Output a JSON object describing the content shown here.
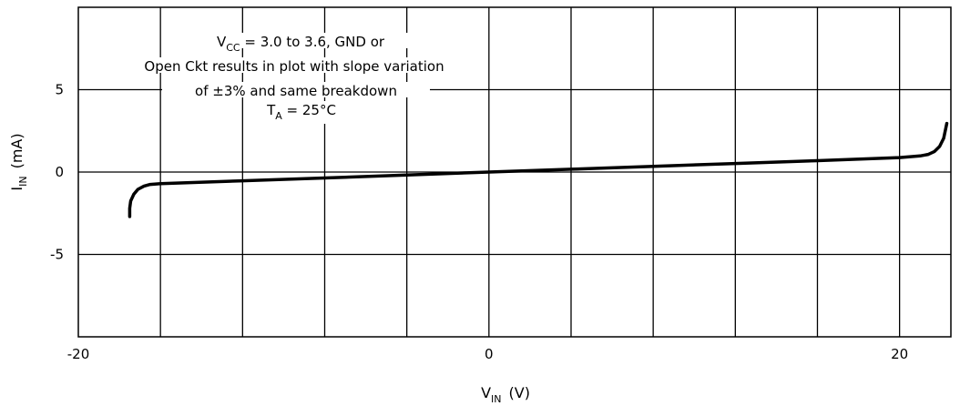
{
  "chart_data": {
    "type": "line",
    "title": "",
    "xlabel": {
      "main": "V",
      "sub": "IN",
      "unit": "(V)"
    },
    "ylabel": {
      "main": "I",
      "sub": "IN",
      "unit": "(mA)"
    },
    "xlim": [
      -20,
      22.5
    ],
    "ylim": [
      -10,
      10
    ],
    "x_grid": [
      -16,
      -12,
      -8,
      -4,
      0,
      4,
      8,
      12,
      16,
      20
    ],
    "y_grid": [
      -5,
      0,
      5
    ],
    "x_ticks": [
      {
        "value": -20,
        "label": "-20"
      },
      {
        "value": 0,
        "label": "0"
      },
      {
        "value": 20,
        "label": "20"
      }
    ],
    "y_ticks": [
      {
        "value": 5,
        "label": "5"
      },
      {
        "value": 0,
        "label": "0"
      },
      {
        "value": -5,
        "label": "-5"
      }
    ],
    "grid": true,
    "annotation": {
      "line1_main": "V",
      "line1_sub": "CC",
      "line1_rest": " = 3.0 to 3.6, GND or",
      "line2": "Open Ckt results in plot with slope variation",
      "line3": "of ±3% and same breakdown",
      "line4_main": "T",
      "line4_sub": "A",
      "line4_rest": " = 25°C"
    },
    "series": [
      {
        "points": [
          [
            -17.5,
            -2.7
          ],
          [
            -17.5,
            -2.2
          ],
          [
            -17.45,
            -1.75
          ],
          [
            -17.3,
            -1.35
          ],
          [
            -17.1,
            -1.05
          ],
          [
            -16.8,
            -0.85
          ],
          [
            -16.5,
            -0.75
          ],
          [
            -16.0,
            -0.7
          ],
          [
            -12.0,
            -0.53
          ],
          [
            -8.0,
            -0.36
          ],
          [
            -4.0,
            -0.18
          ],
          [
            0.0,
            0.0
          ],
          [
            4.0,
            0.17
          ],
          [
            8.0,
            0.35
          ],
          [
            12.0,
            0.52
          ],
          [
            16.0,
            0.69
          ],
          [
            20.0,
            0.88
          ],
          [
            21.0,
            0.98
          ],
          [
            21.4,
            1.07
          ],
          [
            21.7,
            1.25
          ],
          [
            21.95,
            1.55
          ],
          [
            22.15,
            2.05
          ],
          [
            22.3,
            2.95
          ]
        ]
      }
    ]
  }
}
